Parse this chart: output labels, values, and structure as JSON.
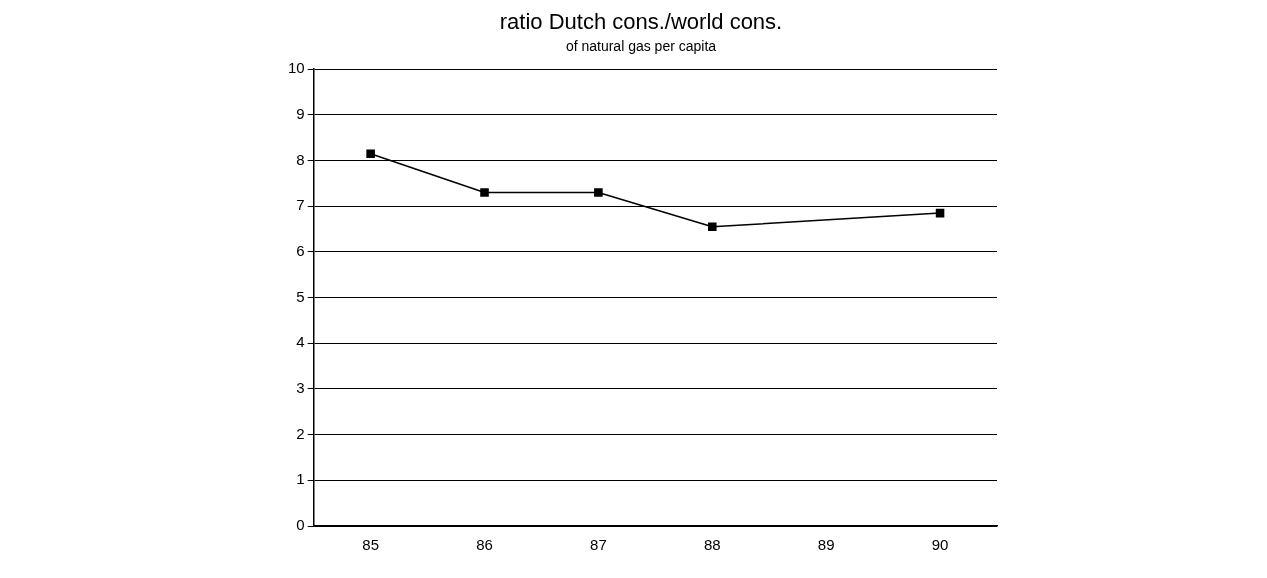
{
  "chart_data": {
    "type": "line",
    "title": "ratio Dutch cons./world cons.",
    "subtitle": "of natural gas per capita",
    "categories": [
      "85",
      "86",
      "87",
      "88",
      "89",
      "90"
    ],
    "series": [
      {
        "color": "#000000",
        "values": [
          8.15,
          7.3,
          7.3,
          6.55,
          null,
          6.85
        ]
      }
    ],
    "ylim": [
      0,
      10
    ],
    "yticks": [
      0,
      1,
      2,
      3,
      4,
      5,
      6,
      7,
      8,
      9,
      10
    ],
    "grid": "y",
    "legend": false,
    "marker": "square",
    "line_style": "solid"
  }
}
